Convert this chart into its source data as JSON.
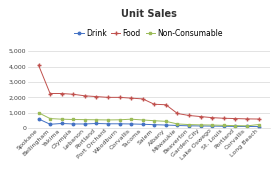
{
  "title": "Unit Sales",
  "categories": [
    "Spokane",
    "Bellingham",
    "Yakima",
    "Olympia",
    "Lebanon",
    "Portland",
    "Port Orchard",
    "Woodburn",
    "Corvallis",
    "Tacoma",
    "Salem",
    "Albany",
    "Milwaukie",
    "Beaverton",
    "Garden City",
    "Lake Oswego",
    "St. Louis",
    "Portland",
    "Corvallis",
    "Long Beach"
  ],
  "drink": [
    600,
    250,
    300,
    270,
    270,
    300,
    280,
    280,
    270,
    250,
    220,
    200,
    170,
    150,
    140,
    130,
    120,
    110,
    105,
    100
  ],
  "food": [
    4100,
    2250,
    2250,
    2200,
    2100,
    2050,
    2000,
    2000,
    1950,
    1900,
    1550,
    1520,
    950,
    820,
    750,
    680,
    640,
    620,
    600,
    590
  ],
  "non_consumable": [
    1000,
    620,
    580,
    560,
    550,
    540,
    530,
    540,
    580,
    530,
    480,
    440,
    270,
    230,
    210,
    200,
    180,
    160,
    145,
    230
  ],
  "drink_color": "#4472c4",
  "food_color": "#c0504d",
  "non_consumable_color": "#9bbb59",
  "background_color": "#ffffff",
  "grid_color": "#d8d8d8",
  "ylim": [
    0,
    5000
  ],
  "yticks": [
    0,
    1000,
    2000,
    3000,
    4000,
    5000
  ],
  "legend_labels": [
    "Drink",
    "Food",
    "Non-Consumable"
  ],
  "title_fontsize": 7,
  "axis_fontsize": 4.5,
  "legend_fontsize": 5.5
}
